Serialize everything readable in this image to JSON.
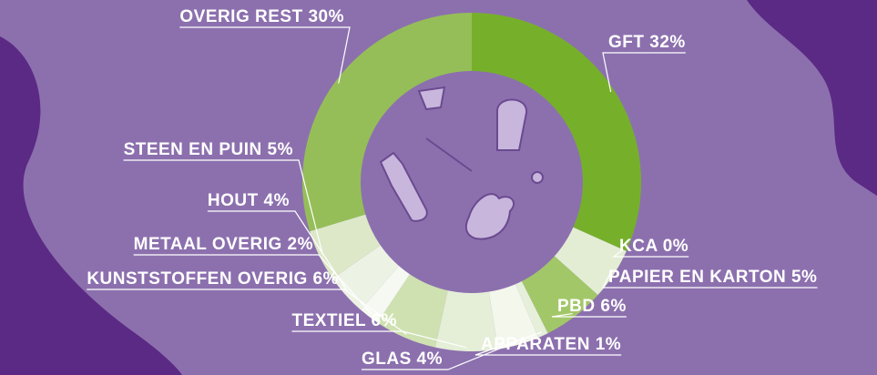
{
  "chart_data": {
    "type": "pie",
    "value_labels": [
      "GFT 32%",
      "KCA 0%",
      "PAPIER EN KARTON 5%",
      "PBD 6%",
      "APPARATEN 1%",
      "GLAS 4%",
      "TEXTIEL 6%",
      "KUNSTSTOFFEN OVERIG 6%",
      "METAAL OVERIG 2%",
      "HOUT 4%",
      "STEEN EN PUIN 5%",
      "OVERIG REST 30%"
    ],
    "values": [
      32,
      0,
      5,
      6,
      1,
      4,
      6,
      6,
      2,
      4,
      5,
      30
    ],
    "colors": [
      "#76b02a",
      "#c9dda8",
      "#e3edd4",
      "#a2c768",
      "#e6efda",
      "#f3f7ec",
      "#e5eed7",
      "#cfe1b1",
      "#f6f9f1",
      "#edf3e4",
      "#dce8c7",
      "#95be58"
    ]
  }
}
